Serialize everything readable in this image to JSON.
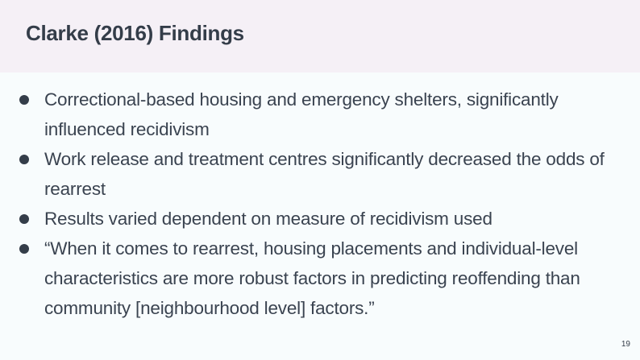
{
  "slide": {
    "title": "Clarke (2016) Findings",
    "bullets": [
      "Correctional-based housing and emergency shelters, significantly influenced recidivism",
      "Work release and treatment centres significantly decreased the odds of rearrest",
      "Results varied dependent on measure of recidivism used",
      "“When it comes to rearrest, housing placements and individual-level characteristics are more robust factors in predicting reoffending than community [neighbourhood level] factors.”"
    ],
    "page_number": "19"
  },
  "colors": {
    "header_bg": "#f5f0f6",
    "body_bg": "#f8fcfd",
    "text": "#3a4350"
  }
}
